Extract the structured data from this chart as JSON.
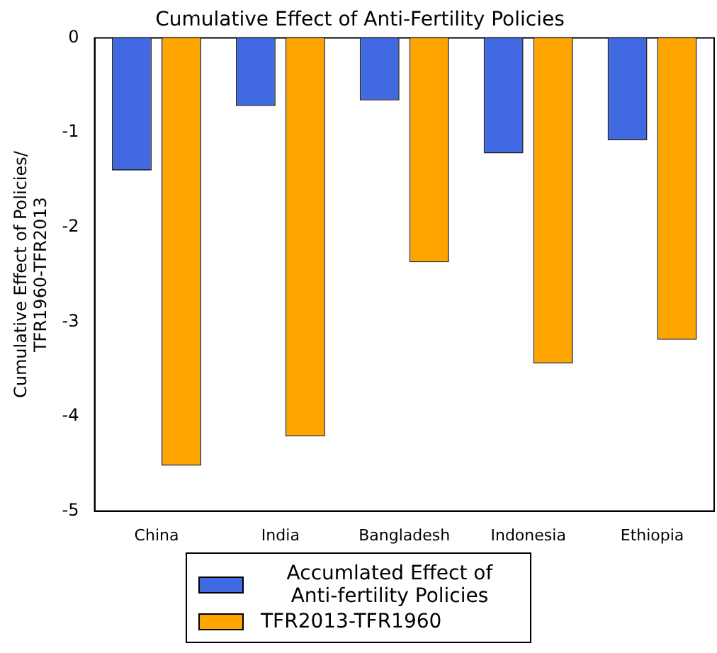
{
  "chart_data": {
    "type": "bar",
    "title": "Cumulative Effect of Anti-Fertility Policies",
    "ylabel": "Cumulative Effect of Policies/\nTFR1960-TFR2013",
    "categories": [
      "China",
      "India",
      "Bangladesh",
      "Indonesia",
      "Ethiopia"
    ],
    "series": [
      {
        "name": "Accumlated Effect of Anti-fertility Policies",
        "color": "#4169e1",
        "values": [
          -1.4,
          -0.72,
          -0.66,
          -1.22,
          -1.08
        ]
      },
      {
        "name": "TFR2013-TFR1960",
        "color": "#ffa500",
        "values": [
          -4.52,
          -4.21,
          -2.37,
          -3.44,
          -3.19
        ]
      }
    ],
    "ylim": [
      -5,
      0
    ],
    "yticks": [
      0,
      -1,
      -2,
      -3,
      -4,
      -5
    ],
    "grid": false,
    "legend": "bottom"
  }
}
